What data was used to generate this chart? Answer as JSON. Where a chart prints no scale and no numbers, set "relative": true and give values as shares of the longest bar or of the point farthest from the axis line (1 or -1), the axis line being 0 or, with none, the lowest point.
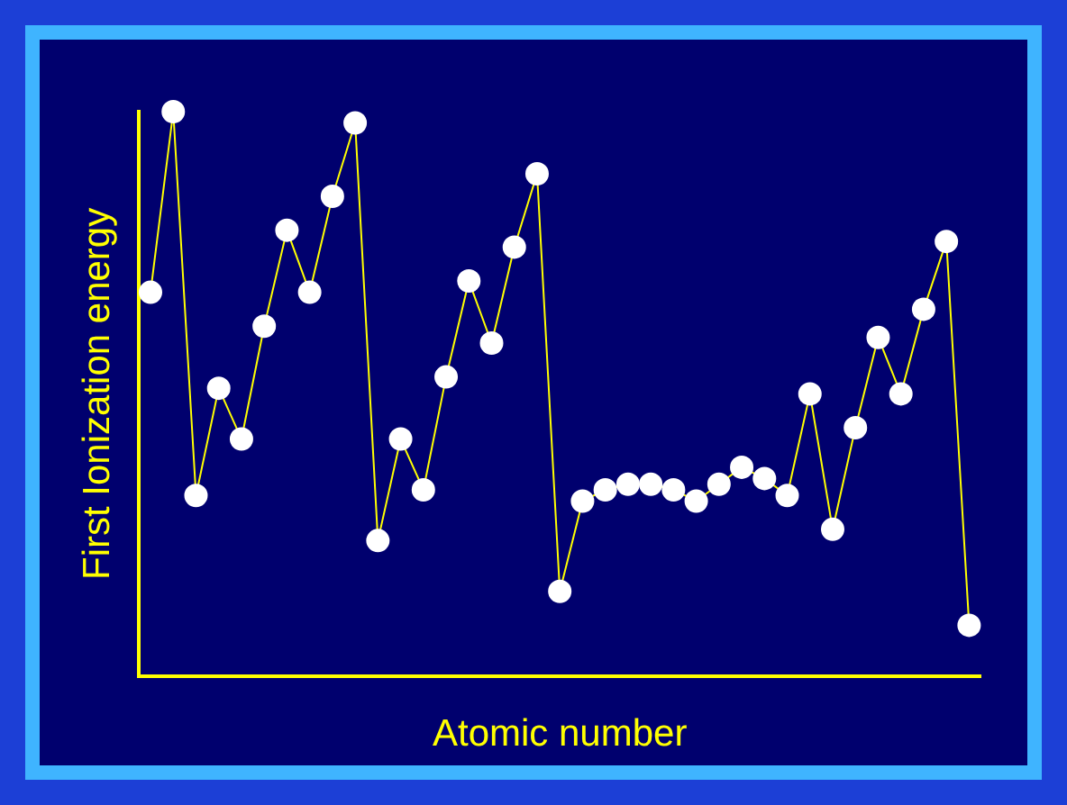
{
  "chart_data": {
    "type": "line",
    "relative": true,
    "xlabel": "Atomic number",
    "ylabel": "First Ionization energy",
    "grid": false,
    "legend": false,
    "marker": "circle",
    "line_style": "solid",
    "categories": [
      null,
      null,
      null,
      null,
      null,
      null,
      null,
      null,
      null,
      null,
      null,
      null,
      null,
      null,
      null,
      null,
      null,
      null,
      null,
      null,
      null,
      null,
      null,
      null,
      null,
      null,
      null,
      null,
      null,
      null,
      null,
      null,
      null,
      null,
      null,
      null,
      null
    ],
    "series": [
      {
        "color": "#ffff00",
        "values": [
          0.68,
          1.0,
          0.32,
          0.51,
          0.42,
          0.62,
          0.79,
          0.68,
          0.85,
          0.98,
          0.24,
          0.42,
          0.33,
          0.53,
          0.7,
          0.59,
          0.76,
          0.89,
          0.15,
          0.31,
          0.33,
          0.34,
          0.34,
          0.33,
          0.31,
          0.34,
          0.37,
          0.35,
          0.32,
          0.5,
          0.26,
          0.44,
          0.6,
          0.5,
          0.65,
          0.77,
          0.09
        ]
      }
    ]
  }
}
